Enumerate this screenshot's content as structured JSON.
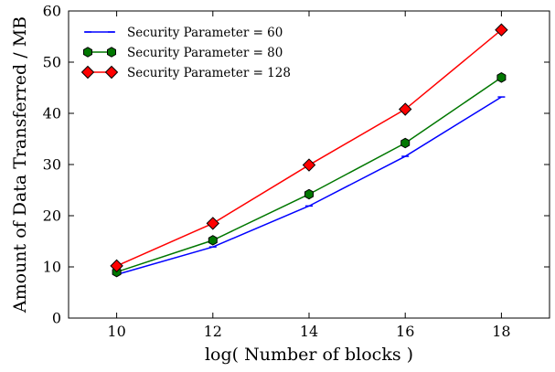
{
  "chart_data": {
    "type": "line",
    "xlabel": "log( Number of blocks )",
    "ylabel": "Amount of Data Transferred / MB",
    "xlim": [
      9,
      19
    ],
    "ylim": [
      0,
      60
    ],
    "x_ticks": [
      10,
      12,
      14,
      16,
      18
    ],
    "y_ticks": [
      0,
      10,
      20,
      30,
      40,
      50,
      60
    ],
    "grid": false,
    "legend_position": "top-left",
    "series": [
      {
        "name": "Security Parameter = 60",
        "color": "#0000ff",
        "marker": "tick",
        "x": [
          10,
          12,
          14,
          16,
          18
        ],
        "y": [
          8.5,
          13.9,
          21.9,
          31.6,
          43.2
        ]
      },
      {
        "name": "Security Parameter = 80",
        "color": "#007700",
        "marker": "hexagon",
        "x": [
          10,
          12,
          14,
          16,
          18
        ],
        "y": [
          9.0,
          15.2,
          24.2,
          34.2,
          47.0
        ]
      },
      {
        "name": "Security Parameter = 128",
        "color": "#ff0000",
        "marker": "diamond",
        "x": [
          10,
          12,
          14,
          16,
          18
        ],
        "y": [
          10.2,
          18.5,
          29.9,
          40.8,
          56.3
        ]
      }
    ]
  }
}
